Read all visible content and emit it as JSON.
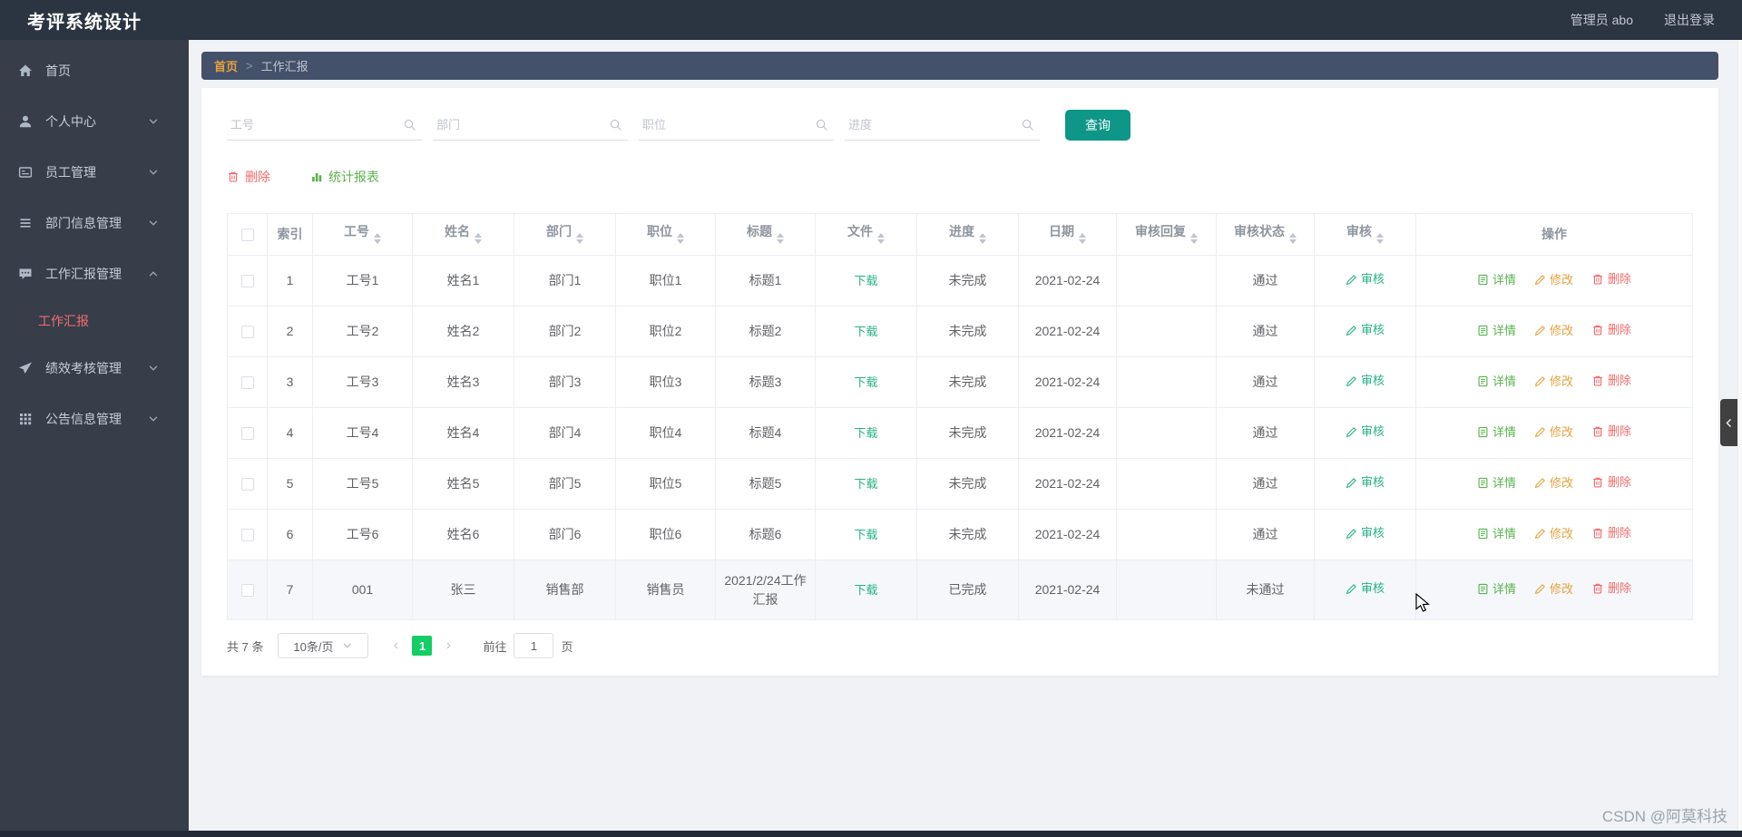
{
  "header": {
    "title": "考评系统设计",
    "user": "管理员 abo",
    "logout": "退出登录"
  },
  "sidebar": {
    "items": [
      {
        "id": "home",
        "label": "首页",
        "icon": "home-icon",
        "expandable": false
      },
      {
        "id": "profile",
        "label": "个人中心",
        "icon": "user-icon",
        "expandable": true
      },
      {
        "id": "employee",
        "label": "员工管理",
        "icon": "card-icon",
        "expandable": true
      },
      {
        "id": "department",
        "label": "部门信息管理",
        "icon": "list-icon",
        "expandable": true
      },
      {
        "id": "work-report",
        "label": "工作汇报管理",
        "icon": "comment-icon",
        "expandable": true,
        "expanded": true,
        "children": [
          {
            "id": "work-report-item",
            "label": "工作汇报",
            "active": true
          }
        ]
      },
      {
        "id": "performance",
        "label": "绩效考核管理",
        "icon": "send-icon",
        "expandable": true
      },
      {
        "id": "notice",
        "label": "公告信息管理",
        "icon": "grid-icon",
        "expandable": true
      }
    ]
  },
  "breadcrumb": {
    "home": "首页",
    "separator": ">",
    "current": "工作汇报"
  },
  "search": {
    "fields": [
      {
        "name": "employee-id",
        "placeholder": "工号"
      },
      {
        "name": "department",
        "placeholder": "部门"
      },
      {
        "name": "position",
        "placeholder": "职位"
      },
      {
        "name": "progress",
        "placeholder": "进度"
      }
    ],
    "query_label": "查询"
  },
  "toolbar": {
    "delete_label": "删除",
    "report_label": "统计报表"
  },
  "table": {
    "columns": [
      {
        "name": "select",
        "label": "",
        "sortable": false
      },
      {
        "name": "index",
        "label": "索引",
        "sortable": false
      },
      {
        "name": "employee_id",
        "label": "工号",
        "sortable": true
      },
      {
        "name": "name",
        "label": "姓名",
        "sortable": true
      },
      {
        "name": "department",
        "label": "部门",
        "sortable": true
      },
      {
        "name": "position",
        "label": "职位",
        "sortable": true
      },
      {
        "name": "title",
        "label": "标题",
        "sortable": true
      },
      {
        "name": "file",
        "label": "文件",
        "sortable": true
      },
      {
        "name": "progress",
        "label": "进度",
        "sortable": true
      },
      {
        "name": "date",
        "label": "日期",
        "sortable": true
      },
      {
        "name": "review_reply",
        "label": "审核回复",
        "sortable": true
      },
      {
        "name": "review_status",
        "label": "审核状态",
        "sortable": true
      },
      {
        "name": "review",
        "label": "审核",
        "sortable": true
      },
      {
        "name": "actions",
        "label": "操作",
        "sortable": false
      }
    ],
    "download_label": "下载",
    "review_label": "审核",
    "action_labels": {
      "detail": "详情",
      "edit": "修改",
      "delete": "删除"
    },
    "rows": [
      {
        "index": "1",
        "employee_id": "工号1",
        "name": "姓名1",
        "department": "部门1",
        "position": "职位1",
        "title": "标题1",
        "progress": "未完成",
        "date": "2021-02-24",
        "review_reply": "",
        "review_status": "通过"
      },
      {
        "index": "2",
        "employee_id": "工号2",
        "name": "姓名2",
        "department": "部门2",
        "position": "职位2",
        "title": "标题2",
        "progress": "未完成",
        "date": "2021-02-24",
        "review_reply": "",
        "review_status": "通过"
      },
      {
        "index": "3",
        "employee_id": "工号3",
        "name": "姓名3",
        "department": "部门3",
        "position": "职位3",
        "title": "标题3",
        "progress": "未完成",
        "date": "2021-02-24",
        "review_reply": "",
        "review_status": "通过"
      },
      {
        "index": "4",
        "employee_id": "工号4",
        "name": "姓名4",
        "department": "部门4",
        "position": "职位4",
        "title": "标题4",
        "progress": "未完成",
        "date": "2021-02-24",
        "review_reply": "",
        "review_status": "通过"
      },
      {
        "index": "5",
        "employee_id": "工号5",
        "name": "姓名5",
        "department": "部门5",
        "position": "职位5",
        "title": "标题5",
        "progress": "未完成",
        "date": "2021-02-24",
        "review_reply": "",
        "review_status": "通过"
      },
      {
        "index": "6",
        "employee_id": "工号6",
        "name": "姓名6",
        "department": "部门6",
        "position": "职位6",
        "title": "标题6",
        "progress": "未完成",
        "date": "2021-02-24",
        "review_reply": "",
        "review_status": "通过"
      },
      {
        "index": "7",
        "employee_id": "001",
        "name": "张三",
        "department": "销售部",
        "position": "销售员",
        "title": "2021/2/24工作汇报",
        "progress": "已完成",
        "date": "2021-02-24",
        "review_reply": "",
        "review_status": "未通过"
      }
    ]
  },
  "pagination": {
    "total": "共 7 条",
    "page_size": "10条/页",
    "current_page": "1",
    "goto_label": "前往",
    "goto_value": "1",
    "page_suffix": "页"
  },
  "watermark": "CSDN @阿莫科技",
  "colors": {
    "header_bg": "#2b3441",
    "sidebar_bg": "#373e4a",
    "breadcrumb_bg": "#44516a",
    "breadcrumb_home": "#e6a23c",
    "primary_teal": "#0e9688",
    "link_teal": "#26b287",
    "detail_green": "#5bb450",
    "report_green": "#5cb04c",
    "warning_orange": "#e6a23c",
    "danger_red": "#f56c6c",
    "page_active_green": "#13ce66",
    "sidebar_icon": "#aeb9c6",
    "sidebar_chevron": "#97a2b0",
    "muted_icon": "#c0c4cc"
  }
}
